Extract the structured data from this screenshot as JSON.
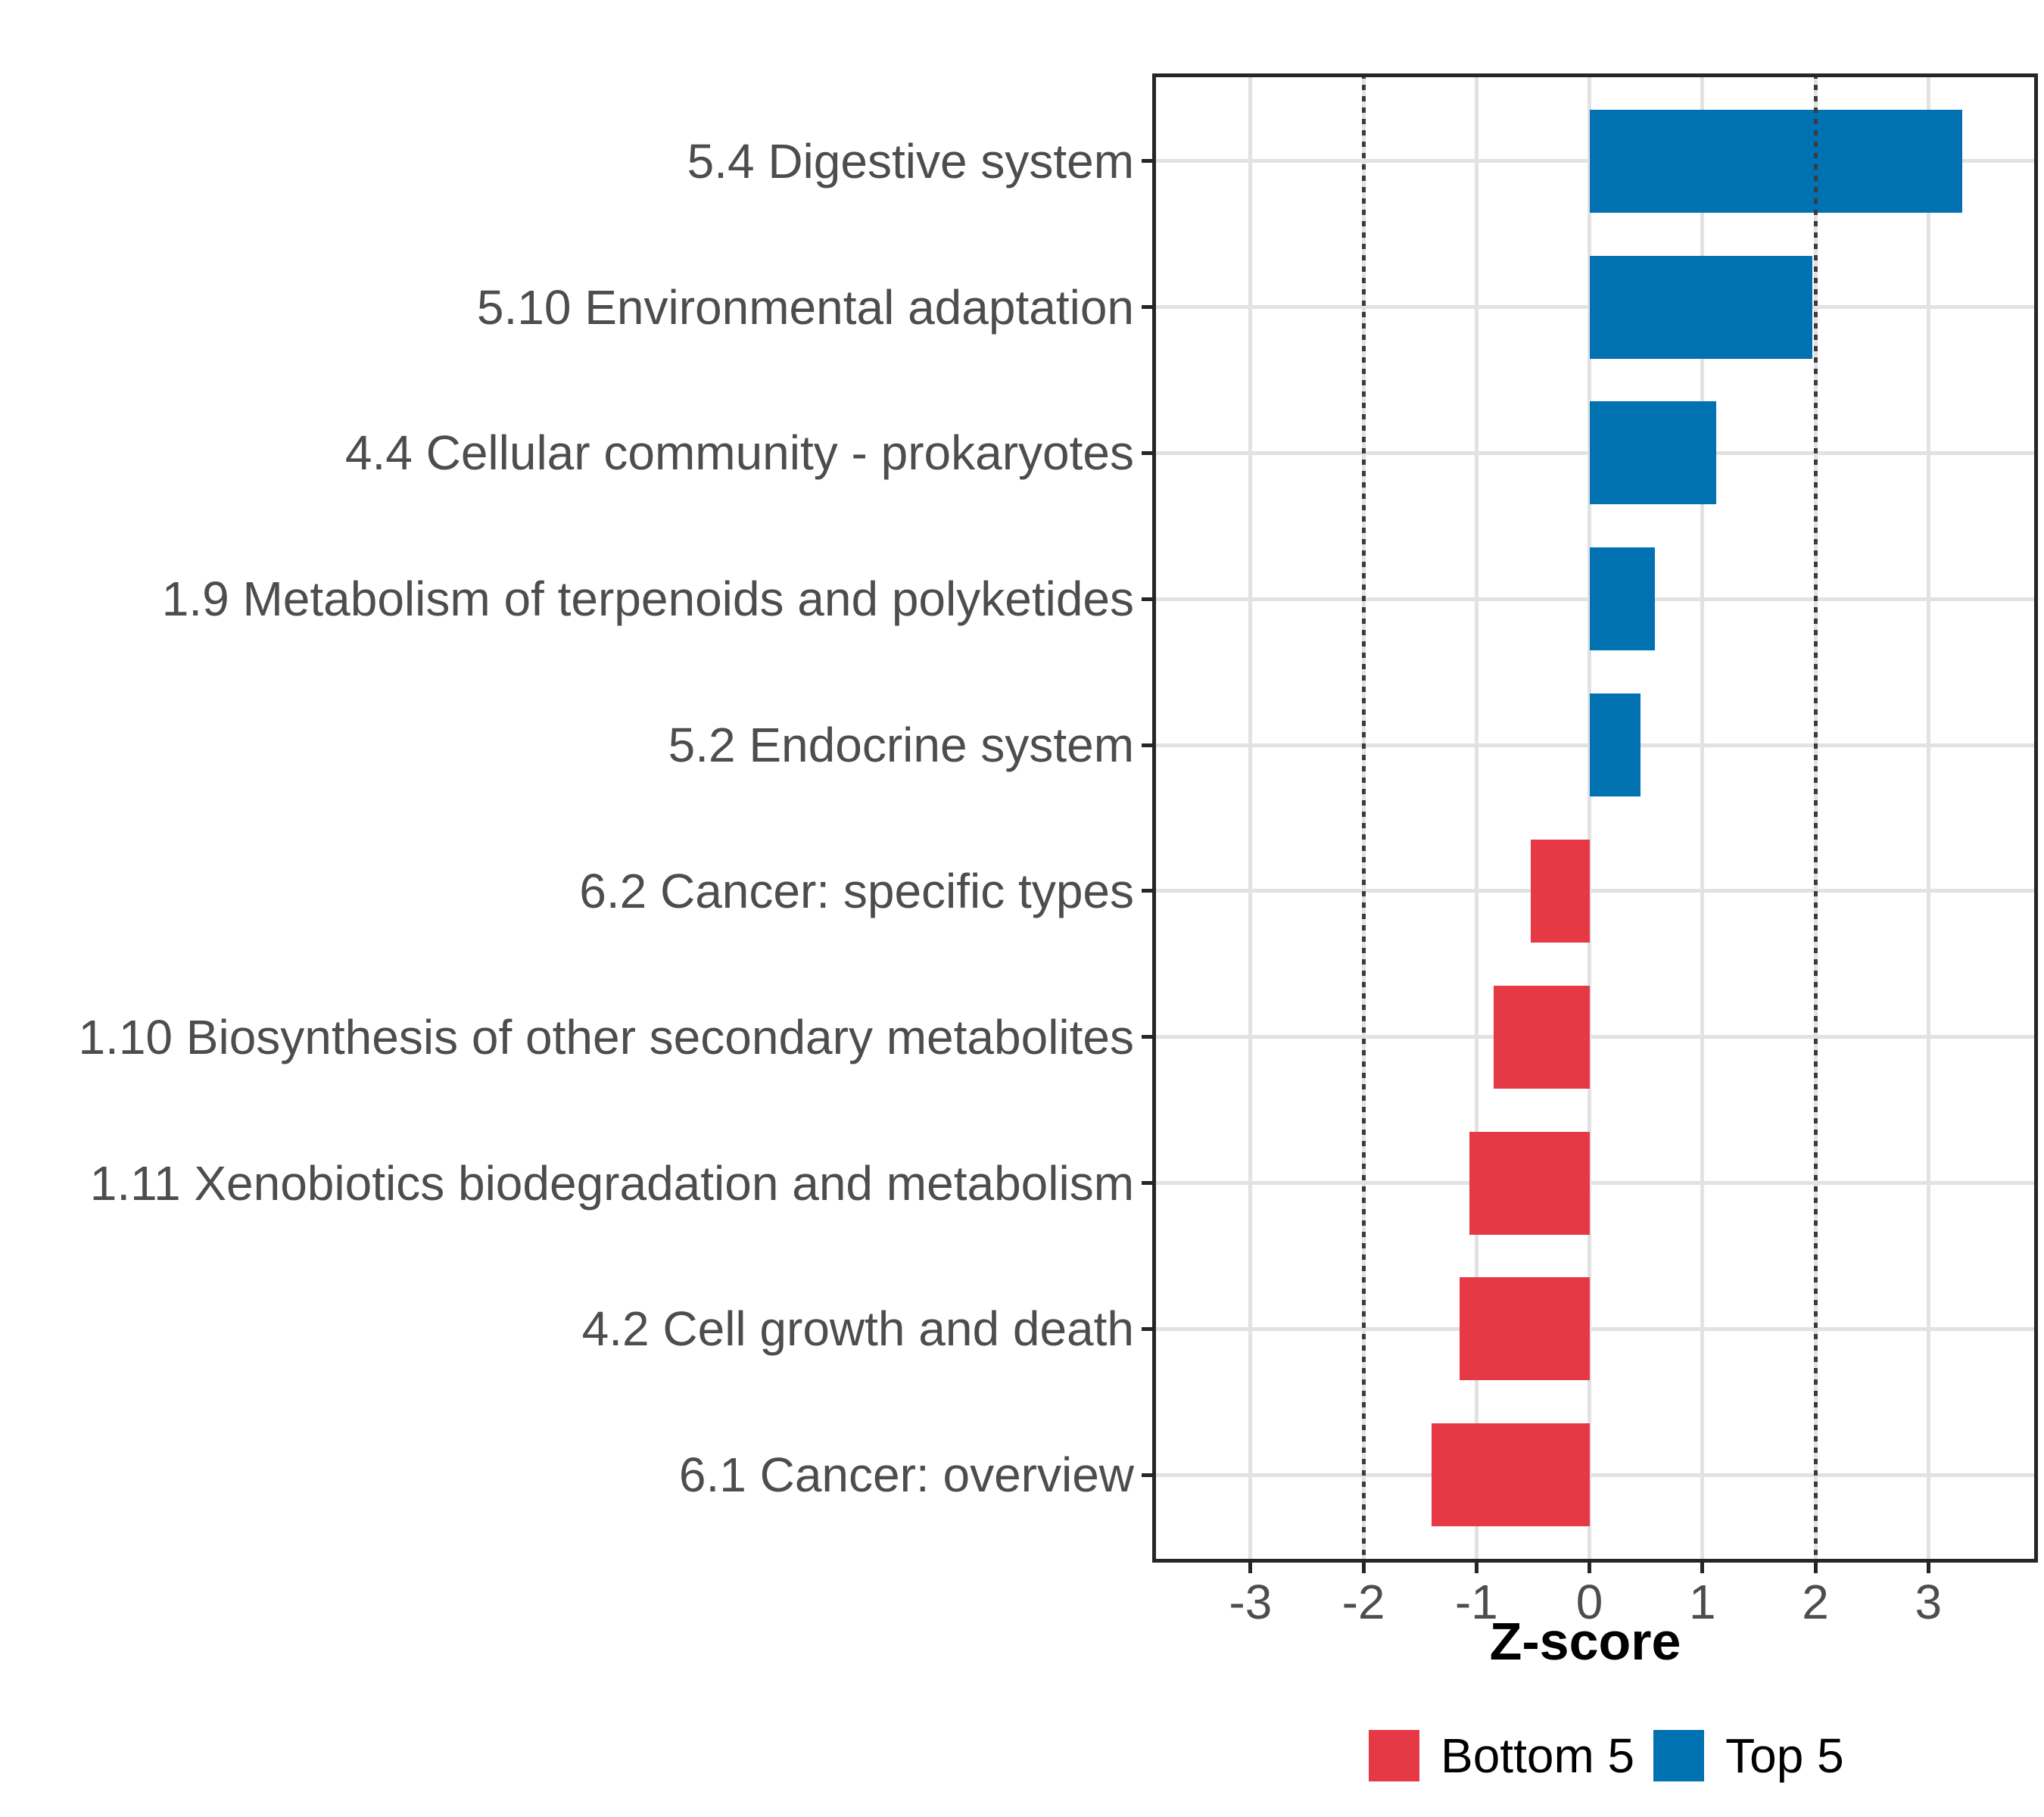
{
  "chart_data": {
    "type": "bar",
    "orientation": "horizontal",
    "title": "",
    "xlabel": "Z-score",
    "ylabel": "",
    "categories": [
      "5.4 Digestive system",
      "5.10 Environmental adaptation",
      "4.4 Cellular community - prokaryotes",
      "1.9 Metabolism of terpenoids and polyketides",
      "5.2 Endocrine system",
      "6.2 Cancer: specific types",
      "1.10 Biosynthesis of other secondary metabolites",
      "1.11 Xenobiotics biodegradation and metabolism",
      "4.2 Cell growth and death",
      "6.1 Cancer: overview"
    ],
    "values": [
      3.3,
      1.97,
      1.12,
      0.58,
      0.45,
      -0.52,
      -0.85,
      -1.06,
      -1.15,
      -1.4
    ],
    "groups": [
      "Top 5",
      "Top 5",
      "Top 5",
      "Top 5",
      "Top 5",
      "Bottom 5",
      "Bottom 5",
      "Bottom 5",
      "Bottom 5",
      "Bottom 5"
    ],
    "group_colors": {
      "Top 5": "#0072B2",
      "Bottom 5": "#E63946"
    },
    "x_ticks": [
      -3,
      -2,
      -1,
      0,
      1,
      2,
      3
    ],
    "xlim": [
      -3.87,
      3.97
    ],
    "reference_lines": [
      {
        "x": -2,
        "linetype": "dotted"
      },
      {
        "x": 2,
        "linetype": "dotted"
      }
    ],
    "grid": "major-only",
    "legend_position": "bottom",
    "legend": [
      {
        "label": "Bottom 5",
        "color": "#E63946"
      },
      {
        "label": "Top 5",
        "color": "#0072B2"
      }
    ],
    "style_colors": {
      "panel_border": "#262626",
      "grid": "#e2e2e2",
      "reference_line": "#3c3c3c",
      "axis_text": "#4d4d4d",
      "axis_title": "#000000"
    }
  }
}
